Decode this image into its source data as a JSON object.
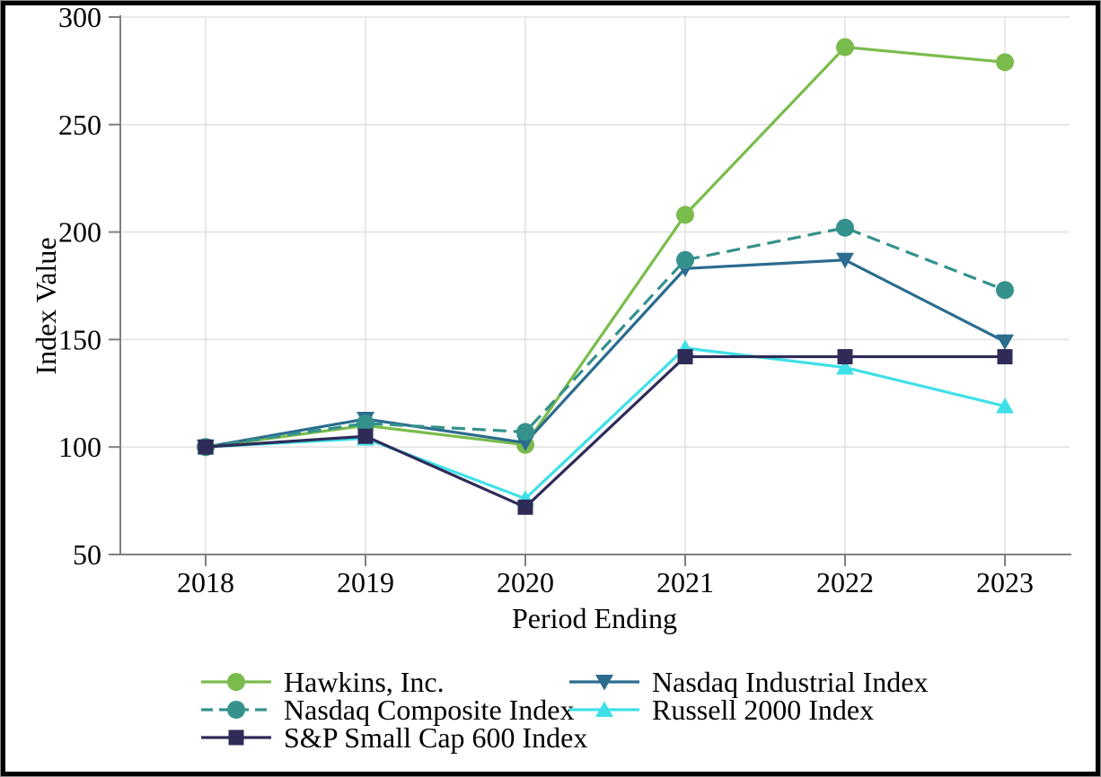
{
  "figure": {
    "background": "#ffffff",
    "frame_color": "#000000",
    "gridline_color": "#e2e2e2",
    "axis_color": "#7f7f7f",
    "text_color": "#000000"
  },
  "chart_data": {
    "type": "line",
    "title": "",
    "xlabel": "Period Ending",
    "ylabel": "Index Value",
    "categories": [
      "2018",
      "2019",
      "2020",
      "2021",
      "2022",
      "2023"
    ],
    "ylim": [
      50,
      300
    ],
    "yticks": [
      50,
      100,
      150,
      200,
      250,
      300
    ],
    "grid": true,
    "legend_position": "bottom",
    "series": [
      {
        "name": "Hawkins, Inc.",
        "values": [
          100,
          110,
          101,
          208,
          286,
          279
        ],
        "color": "#7abc4c",
        "marker": "circle",
        "dash": "solid"
      },
      {
        "name": "Nasdaq Composite Index",
        "values": [
          100,
          111,
          107,
          187,
          202,
          173
        ],
        "color": "#35918c",
        "marker": "circle",
        "dash": "dashed"
      },
      {
        "name": "S&P Small Cap 600 Index",
        "values": [
          100,
          105,
          72,
          142,
          142,
          142
        ],
        "color": "#2e2b58",
        "marker": "square",
        "dash": "solid"
      },
      {
        "name": "Nasdaq Industrial Index",
        "values": [
          100,
          113,
          102,
          183,
          187,
          149
        ],
        "color": "#2b6c8f",
        "marker": "triangle-down",
        "dash": "solid"
      },
      {
        "name": "Russell 2000 Index",
        "values": [
          100,
          104,
          76,
          146,
          137,
          119
        ],
        "color": "#3fe0e8",
        "marker": "triangle-up",
        "dash": "solid"
      }
    ],
    "legend_columns": [
      [
        "Hawkins, Inc.",
        "Nasdaq Composite Index",
        "S&P Small Cap 600 Index"
      ],
      [
        "Nasdaq Industrial Index",
        "Russell 2000 Index"
      ]
    ]
  }
}
